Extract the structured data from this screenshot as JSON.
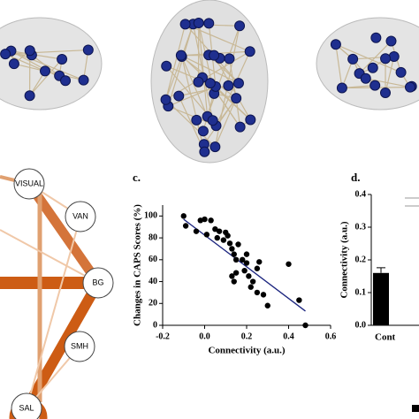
{
  "network": {
    "nodes": [
      "VISUAL",
      "VAN",
      "BG",
      "SMH",
      "SAL"
    ]
  },
  "chart_data": [
    {
      "type": "scatter",
      "panel": "c.",
      "y_label": "Changes in CAPS Scores (%)",
      "x_label": "Connectivity (a.u.)",
      "xlim": [
        -0.2,
        0.6
      ],
      "xticks": [
        -0.2,
        {
          "value": 0,
          "label": "0.0"
        },
        0.2,
        0.4,
        0.6
      ],
      "ylim": [
        0,
        110
      ],
      "yticks": [
        0,
        20,
        40,
        60,
        80,
        100
      ],
      "color": "#000000",
      "x": [
        -0.1,
        -0.09,
        -0.04,
        -0.02,
        0.0,
        0.01,
        0.03,
        0.05,
        0.06,
        0.07,
        0.09,
        0.1,
        0.11,
        0.12,
        0.13,
        0.14,
        0.15,
        0.13,
        0.14,
        0.15,
        0.19,
        0.2,
        0.2,
        0.21,
        0.22,
        0.23,
        0.25,
        0.26,
        0.25,
        0.3,
        0.28,
        0.4,
        0.45,
        0.48,
        0.16,
        0.18
      ],
      "y": [
        100,
        91,
        86,
        96,
        97,
        83,
        96,
        88,
        80,
        86,
        78,
        85,
        82,
        75,
        70,
        65,
        60,
        45,
        40,
        48,
        50,
        65,
        57,
        45,
        35,
        40,
        52,
        58,
        30,
        18,
        28,
        56,
        23,
        0,
        74,
        60
      ],
      "fit": {
        "color": "#1a237e",
        "x": [
          -0.1,
          0.48
        ],
        "y": [
          97,
          13
        ]
      }
    },
    {
      "type": "bar",
      "panel": "d.",
      "y_label": "Connectivity (a.u.)",
      "ylim": [
        0,
        0.4
      ],
      "yticks": [
        {
          "value": 0,
          "label": "0.0"
        },
        0.1,
        0.2,
        0.3,
        0.4
      ],
      "categories": [
        "Cont"
      ],
      "values": [
        0.16
      ],
      "errors": [
        0.016
      ],
      "color": "#000000"
    }
  ]
}
